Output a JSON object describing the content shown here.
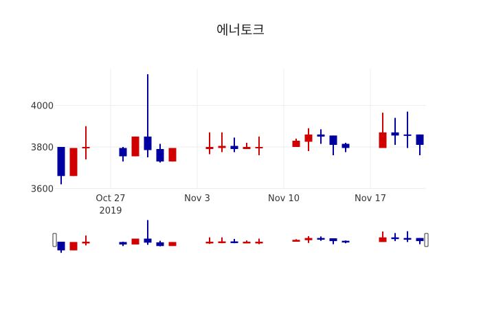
{
  "title": "에너토크",
  "colors": {
    "increasing": "#d00000",
    "decreasing": "#0000a0",
    "grid": "#eeeeee",
    "text": "#333333"
  },
  "chart_data": {
    "type": "candlestick",
    "title": "에너토크",
    "xlabel": "",
    "ylabel": "",
    "ylim": [
      3600,
      4200
    ],
    "y_ticks": [
      3600,
      3800,
      4000
    ],
    "x_ticks": [
      {
        "date": "2019-10-27",
        "label": "Oct 27",
        "sublabel": "2019"
      },
      {
        "date": "2019-11-03",
        "label": "Nov 3",
        "sublabel": ""
      },
      {
        "date": "2019-11-10",
        "label": "Nov 10",
        "sublabel": ""
      },
      {
        "date": "2019-11-17",
        "label": "Nov 17",
        "sublabel": ""
      }
    ],
    "xlim": [
      "2019-10-22T12:00",
      "2019-11-21T12:00"
    ],
    "grid": true,
    "rangeslider": true,
    "series": [
      {
        "date": "2019-10-23",
        "open": 3800,
        "high": 3800,
        "low": 3620,
        "close": 3660
      },
      {
        "date": "2019-10-24",
        "open": 3660,
        "high": 3795,
        "low": 3660,
        "close": 3795
      },
      {
        "date": "2019-10-25",
        "open": 3795,
        "high": 3900,
        "low": 3740,
        "close": 3800
      },
      {
        "date": "2019-10-28",
        "open": 3795,
        "high": 3800,
        "low": 3730,
        "close": 3755
      },
      {
        "date": "2019-10-29",
        "open": 3755,
        "high": 3850,
        "low": 3755,
        "close": 3850
      },
      {
        "date": "2019-10-30",
        "open": 3850,
        "high": 4150,
        "low": 3750,
        "close": 3785
      },
      {
        "date": "2019-10-31",
        "open": 3790,
        "high": 3815,
        "low": 3725,
        "close": 3730
      },
      {
        "date": "2019-11-01",
        "open": 3730,
        "high": 3795,
        "low": 3730,
        "close": 3795
      },
      {
        "date": "2019-11-04",
        "open": 3790,
        "high": 3870,
        "low": 3765,
        "close": 3800
      },
      {
        "date": "2019-11-05",
        "open": 3795,
        "high": 3870,
        "low": 3775,
        "close": 3805
      },
      {
        "date": "2019-11-06",
        "open": 3805,
        "high": 3845,
        "low": 3775,
        "close": 3790
      },
      {
        "date": "2019-11-07",
        "open": 3790,
        "high": 3820,
        "low": 3790,
        "close": 3800
      },
      {
        "date": "2019-11-08",
        "open": 3795,
        "high": 3850,
        "low": 3760,
        "close": 3800
      },
      {
        "date": "2019-11-11",
        "open": 3800,
        "high": 3840,
        "low": 3800,
        "close": 3830
      },
      {
        "date": "2019-11-12",
        "open": 3825,
        "high": 3890,
        "low": 3780,
        "close": 3860
      },
      {
        "date": "2019-11-13",
        "open": 3860,
        "high": 3885,
        "low": 3815,
        "close": 3850
      },
      {
        "date": "2019-11-14",
        "open": 3855,
        "high": 3855,
        "low": 3760,
        "close": 3810
      },
      {
        "date": "2019-11-15",
        "open": 3815,
        "high": 3820,
        "low": 3775,
        "close": 3795
      },
      {
        "date": "2019-11-18",
        "open": 3795,
        "high": 3965,
        "low": 3795,
        "close": 3870
      },
      {
        "date": "2019-11-19",
        "open": 3870,
        "high": 3940,
        "low": 3810,
        "close": 3855
      },
      {
        "date": "2019-11-20",
        "open": 3860,
        "high": 3970,
        "low": 3795,
        "close": 3855
      },
      {
        "date": "2019-11-21",
        "open": 3860,
        "high": 3860,
        "low": 3760,
        "close": 3810
      }
    ]
  }
}
